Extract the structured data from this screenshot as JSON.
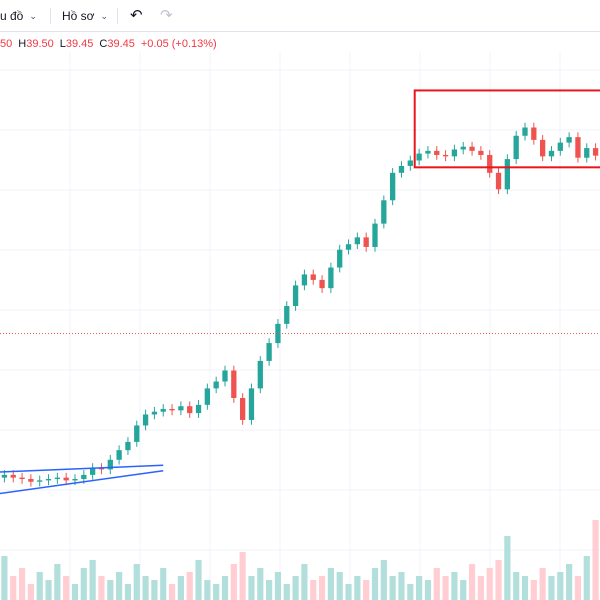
{
  "toolbar": {
    "chart_menu_label": "u đồ",
    "profile_menu_label": "Hồ sơ",
    "undo_icon": "undo-icon",
    "redo_icon": "redo-icon"
  },
  "legend": {
    "open": "50",
    "high_key": "H",
    "high": "39.50",
    "low_key": "L",
    "low": "39.45",
    "close_key": "C",
    "close": "39.45",
    "change": "+0.05 (+0.13%)"
  },
  "colors": {
    "up": "#26a69a",
    "down": "#ef5350",
    "up_volume": "#b2dfdb",
    "down_volume": "#ffcdd2",
    "rectangle": "#e8151b",
    "trendline": "#2962ff",
    "price_line": "#ef5350",
    "grid": "#f0f3fa"
  },
  "chart_data": {
    "type": "candlestick",
    "title": "",
    "xlabel": "",
    "ylabel": "",
    "ylim": [
      10,
      47
    ],
    "grid": true,
    "series": [
      {
        "values_close_approx": [
          16.2,
          16.0,
          15.9,
          15.7,
          15.8,
          15.9,
          16.0,
          15.8,
          15.9,
          16.2,
          16.7,
          16.6,
          17.3,
          18.0,
          18.6,
          19.8,
          20.6,
          20.8,
          21.0,
          20.9,
          21.2,
          20.7,
          21.3,
          22.5,
          23.0,
          23.8,
          21.8,
          20.2,
          22.5,
          24.5,
          25.8,
          27.2,
          28.5,
          30.0,
          30.8,
          30.4,
          29.8,
          31.3,
          32.6,
          33.0,
          33.5,
          32.8,
          34.5,
          36.2,
          38.2,
          38.7,
          39.1,
          39.6,
          39.8,
          39.5,
          39.4,
          39.9,
          40.1,
          39.8,
          39.5,
          38.2,
          37.0,
          39.2,
          40.9,
          41.5,
          40.6,
          39.4,
          39.8,
          40.4,
          40.8,
          39.3,
          40.0,
          39.45
        ]
      }
    ],
    "volume_approx": [
      0.55,
      0.3,
      0.4,
      0.2,
      0.35,
      0.25,
      0.45,
      0.3,
      0.2,
      0.4,
      0.5,
      0.3,
      0.25,
      0.35,
      0.2,
      0.45,
      0.3,
      0.25,
      0.4,
      0.2,
      0.3,
      0.35,
      0.5,
      0.25,
      0.2,
      0.3,
      0.45,
      0.6,
      0.3,
      0.4,
      0.25,
      0.35,
      0.2,
      0.3,
      0.45,
      0.25,
      0.3,
      0.4,
      0.35,
      0.2,
      0.3,
      0.25,
      0.4,
      0.5,
      0.3,
      0.35,
      0.2,
      0.3,
      0.25,
      0.4,
      0.3,
      0.35,
      0.25,
      0.45,
      0.3,
      0.4,
      0.5,
      0.8,
      0.35,
      0.3,
      0.25,
      0.4,
      0.3,
      0.35,
      0.45,
      0.3,
      0.55,
      1.0
    ]
  },
  "annotations": {
    "rectangle": {
      "price_top": 44.2,
      "price_bottom": 38.6,
      "from_index": 47,
      "to_index": 67
    },
    "trendline_lower": {
      "from": [
        0,
        14.8
      ],
      "to": [
        18,
        16.5
      ]
    },
    "trendline_upper": {
      "from": [
        0,
        16.4
      ],
      "to": [
        18,
        16.9
      ]
    },
    "price_line": 26.5
  }
}
